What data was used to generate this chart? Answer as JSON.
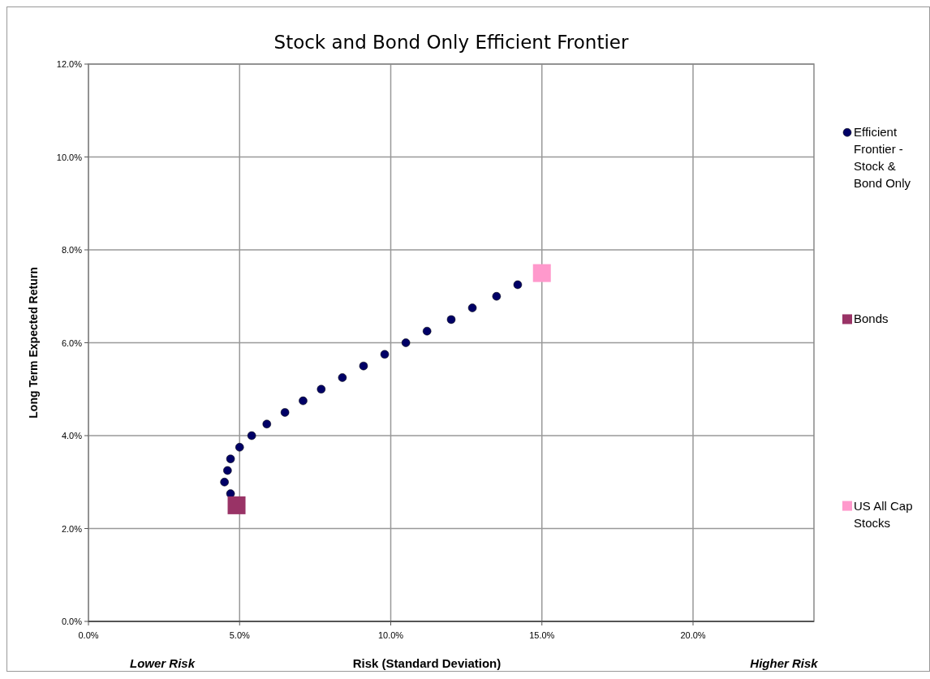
{
  "chart_data": {
    "type": "scatter",
    "title": "Stock and Bond Only Efficient Frontier",
    "xlabel": "Risk (Standard Deviation)",
    "ylabel": "Long Term Expected Return",
    "annotations": [
      "Lower Risk",
      "Higher Risk"
    ],
    "xlim": [
      0,
      24
    ],
    "ylim": [
      0,
      12
    ],
    "xticks": [
      {
        "value": 0,
        "label": "0.0%"
      },
      {
        "value": 5,
        "label": "5.0%"
      },
      {
        "value": 10,
        "label": "10.0%"
      },
      {
        "value": 15,
        "label": "15.0%"
      },
      {
        "value": 20,
        "label": "20.0%"
      }
    ],
    "yticks": [
      {
        "value": 0,
        "label": "0.0%"
      },
      {
        "value": 2,
        "label": "2.0%"
      },
      {
        "value": 4,
        "label": "4.0%"
      },
      {
        "value": 6,
        "label": "6.0%"
      },
      {
        "value": 8,
        "label": "8.0%"
      },
      {
        "value": 10,
        "label": "10.0%"
      },
      {
        "value": 12,
        "label": "12.0%"
      }
    ],
    "grid": true,
    "legend": "right",
    "series": [
      {
        "name": "Efficient Frontier - Stock & Bond Only",
        "color": "#000066",
        "marker": "circle",
        "x": [
          4.7,
          4.5,
          4.6,
          4.7,
          5.0,
          5.4,
          5.9,
          6.5,
          7.1,
          7.7,
          8.4,
          9.1,
          9.8,
          10.5,
          11.2,
          12.0,
          12.7,
          13.5,
          14.2
        ],
        "values": [
          2.75,
          3.0,
          3.25,
          3.5,
          3.75,
          4.0,
          4.25,
          4.5,
          4.75,
          5.0,
          5.25,
          5.5,
          5.75,
          6.0,
          6.25,
          6.5,
          6.75,
          7.0,
          7.25
        ]
      },
      {
        "name": "Bonds",
        "color": "#993366",
        "marker": "square",
        "x": [
          4.9
        ],
        "values": [
          2.5
        ]
      },
      {
        "name": "US All Cap Stocks",
        "color": "#ff99cc",
        "marker": "square",
        "x": [
          15.0
        ],
        "values": [
          7.5
        ]
      }
    ]
  }
}
